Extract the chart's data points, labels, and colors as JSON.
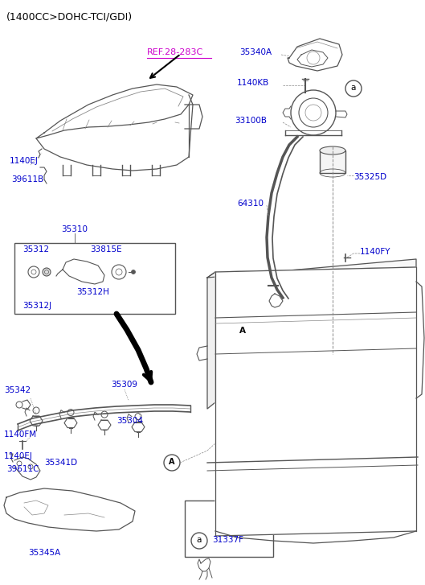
{
  "bg_color": "#ffffff",
  "blue": "#0000cc",
  "magenta": "#cc00cc",
  "black": "#000000",
  "gray": "#555555",
  "lgray": "#888888",
  "labels": {
    "title": "(1400CC>DOHC-TCI/GDI)",
    "ref": "REF.28-283C",
    "l1140EJ_top": "1140EJ",
    "l39611B": "39611B",
    "l35310": "35310",
    "l33815E": "33815E",
    "l35312": "35312",
    "l35312H": "35312H",
    "l35312J": "35312J",
    "l35342": "35342",
    "l35309": "35309",
    "l35304": "35304",
    "l1140FM": "1140FM",
    "l39611C": "39611C",
    "l1140EJ_bot": "1140EJ",
    "l35341D": "35341D",
    "l35345A": "35345A",
    "l35340A": "35340A",
    "l1140KB": "1140KB",
    "l33100B": "33100B",
    "l35325D": "35325D",
    "l64310": "64310",
    "l1140FY": "1140FY",
    "l31337F": "31337F"
  }
}
